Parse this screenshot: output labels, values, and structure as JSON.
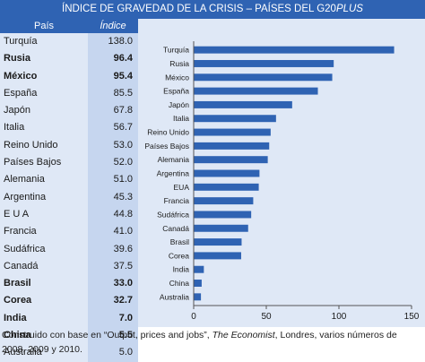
{
  "title": {
    "main": "ÍNDICE DE GRAVEDAD DE LA CRISIS – PAÍSES DEL G20",
    "suffix": "PLUS"
  },
  "table": {
    "header_country": "País",
    "header_index": "Índice",
    "rows": [
      {
        "country": "Turquía",
        "value": "138.0",
        "bold": false
      },
      {
        "country": "Rusia",
        "value": "96.4",
        "bold": true
      },
      {
        "country": "México",
        "value": "95.4",
        "bold": true
      },
      {
        "country": "España",
        "value": "85.5",
        "bold": false
      },
      {
        "country": "Japón",
        "value": "67.8",
        "bold": false
      },
      {
        "country": "Italia",
        "value": "56.7",
        "bold": false
      },
      {
        "country": "Reino Unido",
        "value": "53.0",
        "bold": false
      },
      {
        "country": "Países Bajos",
        "value": "52.0",
        "bold": false
      },
      {
        "country": "Alemania",
        "value": "51.0",
        "bold": false
      },
      {
        "country": "Argentina",
        "value": "45.3",
        "bold": false
      },
      {
        "country": "E U A",
        "value": "44.8",
        "bold": false
      },
      {
        "country": "Francia",
        "value": "41.0",
        "bold": false
      },
      {
        "country": "Sudáfrica",
        "value": "39.6",
        "bold": false
      },
      {
        "country": "Canadá",
        "value": "37.5",
        "bold": false
      },
      {
        "country": "Brasil",
        "value": "33.0",
        "bold": true
      },
      {
        "country": "Corea",
        "value": "32.7",
        "bold": true
      },
      {
        "country": "India",
        "value": "7.0",
        "bold": true
      },
      {
        "country": "China",
        "value": "5.5",
        "bold": true
      },
      {
        "country": "Australia",
        "value": "5.0",
        "bold": false
      }
    ]
  },
  "chart_data": {
    "type": "bar",
    "orientation": "horizontal",
    "categories": [
      "Turquía",
      "Rusia",
      "México",
      "España",
      "Japón",
      "Italia",
      "Reino Unido",
      "Países Bajos",
      "Alemania",
      "Argentina",
      "EUA",
      "Francia",
      "Sudáfrica",
      "Canadá",
      "Brasil",
      "Corea",
      "India",
      "China",
      "Australia"
    ],
    "values": [
      138.0,
      96.4,
      95.4,
      85.5,
      67.8,
      56.7,
      53.0,
      52.0,
      51.0,
      45.3,
      44.8,
      41.0,
      39.6,
      37.5,
      33.0,
      32.7,
      7.0,
      5.5,
      5.0
    ],
    "xlim": [
      0,
      150
    ],
    "xticks": [
      "0",
      "50",
      "100",
      "150"
    ],
    "grid": false,
    "bar_color": "#2f63b3",
    "panel_color": "#dfe8f6"
  },
  "source": {
    "prefix": "Construido con base en “Output, prices and jobs”, ",
    "publication": "The Economist",
    "suffix": ", Londres, varios números de",
    "line2": "2008, 2009 y 2010."
  },
  "colors": {
    "header_blue": "#2f63b3",
    "country_cell": "#dfe8f6",
    "index_cell": "#c6d6ef"
  }
}
